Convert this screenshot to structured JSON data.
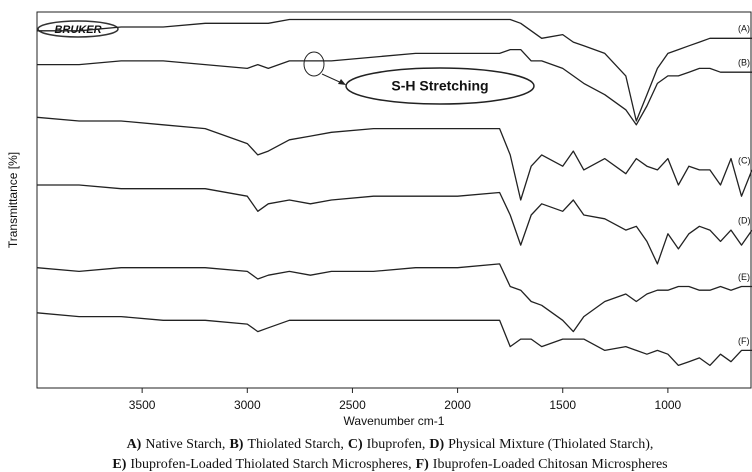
{
  "chart_data": {
    "type": "line",
    "logo": "BRUKER",
    "y_label": "Transmittance [%]",
    "x_label": "Wavenumber cm-1",
    "annotation": "S-H Stretching",
    "x": [
      4000,
      3800,
      3600,
      3400,
      3200,
      3000,
      2950,
      2900,
      2800,
      2700,
      2600,
      2400,
      2200,
      2000,
      1800,
      1750,
      1700,
      1650,
      1600,
      1500,
      1450,
      1400,
      1300,
      1200,
      1150,
      1100,
      1050,
      1000,
      950,
      900,
      850,
      800,
      750,
      700,
      650,
      600
    ],
    "xlim": [
      4000,
      600
    ],
    "xticks": [
      3500,
      3000,
      2500,
      2000,
      1500,
      1000
    ],
    "ylim": [
      0,
      100
    ],
    "series": [
      {
        "name": "(A)",
        "color": "#222",
        "values": [
          95,
          95,
          96,
          96,
          97,
          97,
          97,
          97,
          98,
          98,
          98,
          98,
          98,
          98,
          98,
          98,
          97,
          95,
          93,
          94,
          92,
          91,
          89,
          83,
          71,
          78,
          85,
          89,
          90,
          91,
          92,
          93,
          93,
          93,
          93,
          93
        ]
      },
      {
        "name": "(B)",
        "color": "#222",
        "values": [
          86,
          86,
          87,
          87,
          86,
          85,
          86,
          85,
          87,
          87,
          87,
          88,
          89,
          89,
          89,
          90,
          90,
          87,
          87,
          85,
          83,
          81,
          78,
          74,
          70,
          75,
          81,
          83,
          83,
          84,
          85,
          85,
          84,
          84,
          84,
          84
        ]
      },
      {
        "name": "(C)",
        "color": "#222",
        "values": [
          72,
          71,
          71,
          70,
          69,
          65,
          62,
          63,
          66,
          67,
          68,
          69,
          69,
          69,
          69,
          62,
          50,
          59,
          62,
          59,
          63,
          58,
          61,
          57,
          61,
          59,
          58,
          61,
          54,
          59,
          58,
          58,
          54,
          61,
          51,
          58
        ]
      },
      {
        "name": "(D)",
        "color": "#222",
        "values": [
          54,
          54,
          53,
          53,
          53,
          51,
          47,
          49,
          50,
          49,
          50,
          51,
          51,
          51,
          52,
          46,
          38,
          46,
          49,
          47,
          50,
          46,
          45,
          42,
          43,
          39,
          33,
          41,
          37,
          41,
          43,
          42,
          39,
          42,
          38,
          42
        ]
      },
      {
        "name": "(E)",
        "color": "#222",
        "values": [
          32,
          31,
          32,
          32,
          32,
          31,
          29,
          30,
          31,
          30,
          31,
          31,
          32,
          32,
          33,
          27,
          26,
          23,
          22,
          18,
          15,
          19,
          23,
          25,
          23,
          25,
          26,
          26,
          27,
          27,
          26,
          26,
          27,
          26,
          27,
          27
        ]
      },
      {
        "name": "(F)",
        "color": "#222",
        "values": [
          20,
          19,
          19,
          18,
          18,
          17,
          15,
          16,
          18,
          18,
          18,
          18,
          18,
          18,
          18,
          11,
          13,
          13,
          11,
          13,
          13,
          13,
          10,
          11,
          10,
          9,
          10,
          9,
          6,
          7,
          8,
          6,
          9,
          7,
          10,
          10
        ]
      }
    ],
    "caption": [
      [
        {
          "key": "A)",
          "text": "Native Starch,"
        },
        {
          "key": "B)",
          "text": "Thiolated Starch,"
        },
        {
          "key": "C)",
          "text": "Ibuprofen,"
        },
        {
          "key": "D)",
          "text": "Physical Mixture (Thiolated Starch),"
        }
      ],
      [
        {
          "key": "E)",
          "text": "Ibuprofen-Loaded Thiolated Starch Microspheres,"
        },
        {
          "key": "F)",
          "text": "Ibuprofen-Loaded Chitosan Microspheres"
        }
      ]
    ]
  }
}
